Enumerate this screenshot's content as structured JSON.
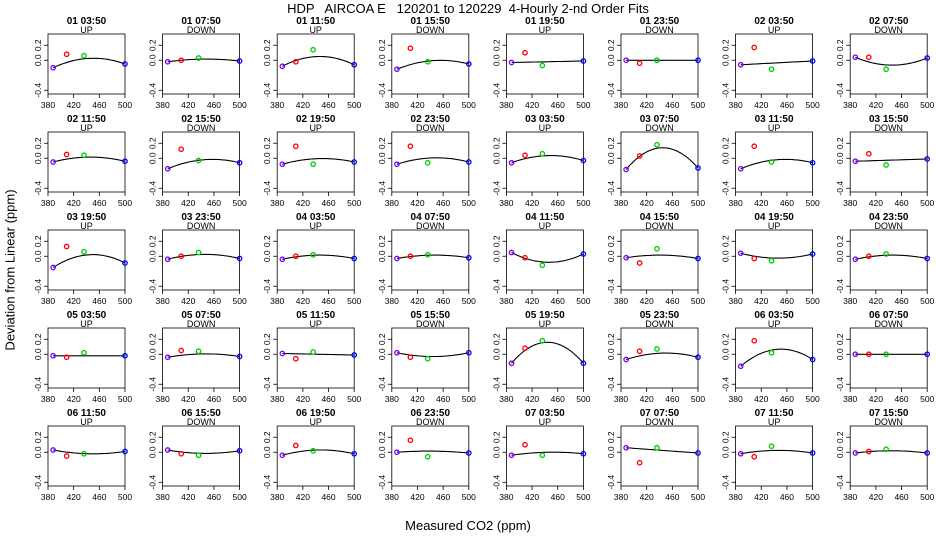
{
  "title": "HDP   AIRCOA E   120201 to 120229  4-Hourly 2-nd Order Fits",
  "xlabel": "Measured CO2 (ppm)",
  "ylabel": "Deviation from Linear (ppm)",
  "chart_data": {
    "type": "scatter",
    "xlim": [
      380,
      500
    ],
    "ylim": [
      -0.45,
      0.35
    ],
    "xticks": [
      "380",
      "420",
      "460",
      "500"
    ],
    "yticks": [
      "-0.4",
      "0.0",
      "0.2"
    ],
    "std_x": [
      388,
      409,
      436,
      500
    ],
    "std_colors": [
      "#8000ff",
      "#ff0000",
      "#00cc00",
      "#0000ff"
    ],
    "line_color": "#000000",
    "panels": [
      {
        "title": "01 03:50",
        "dir": "UP",
        "y": [
          -0.1,
          0.08,
          0.06,
          -0.05
        ],
        "c": -0.1
      },
      {
        "title": "01 07:50",
        "dir": "DOWN",
        "y": [
          -0.02,
          0.0,
          0.03,
          -0.01
        ],
        "c": -0.03
      },
      {
        "title": "01 11:50",
        "dir": "UP",
        "y": [
          -0.08,
          -0.02,
          0.14,
          -0.06
        ],
        "c": -0.12
      },
      {
        "title": "01 15:50",
        "dir": "DOWN",
        "y": [
          -0.12,
          0.16,
          -0.02,
          -0.05
        ],
        "c": -0.08
      },
      {
        "title": "01 19:50",
        "dir": "UP",
        "y": [
          -0.03,
          0.1,
          -0.07,
          -0.01
        ],
        "c": 0.0
      },
      {
        "title": "01 23:50",
        "dir": "DOWN",
        "y": [
          0.0,
          -0.04,
          0.0,
          0.0
        ],
        "c": 0.0
      },
      {
        "title": "02 03:50",
        "dir": "UP",
        "y": [
          -0.06,
          0.17,
          -0.12,
          -0.01
        ],
        "c": 0.0
      },
      {
        "title": "02 07:50",
        "dir": "DOWN",
        "y": [
          0.04,
          0.04,
          -0.12,
          0.03
        ],
        "c": 0.1
      },
      {
        "title": "02 11:50",
        "dir": "UP",
        "y": [
          -0.05,
          0.05,
          0.04,
          -0.04
        ],
        "c": -0.06
      },
      {
        "title": "02 15:50",
        "dir": "DOWN",
        "y": [
          -0.14,
          0.12,
          -0.03,
          -0.06
        ],
        "c": -0.08
      },
      {
        "title": "02 19:50",
        "dir": "UP",
        "y": [
          -0.08,
          0.16,
          -0.08,
          -0.05
        ],
        "c": -0.06
      },
      {
        "title": "02 23:50",
        "dir": "DOWN",
        "y": [
          -0.08,
          0.16,
          -0.06,
          -0.05
        ],
        "c": -0.07
      },
      {
        "title": "03 03:50",
        "dir": "UP",
        "y": [
          -0.06,
          0.04,
          0.06,
          -0.03
        ],
        "c": -0.08
      },
      {
        "title": "03 07:50",
        "dir": "DOWN",
        "y": [
          -0.15,
          0.03,
          0.18,
          -0.13
        ],
        "c": -0.28
      },
      {
        "title": "03 11:50",
        "dir": "UP",
        "y": [
          -0.14,
          0.16,
          -0.05,
          -0.06
        ],
        "c": -0.08
      },
      {
        "title": "03 15:50",
        "dir": "DOWN",
        "y": [
          -0.04,
          0.06,
          -0.09,
          -0.01
        ],
        "c": 0.0
      },
      {
        "title": "03 19:50",
        "dir": "UP",
        "y": [
          -0.15,
          0.13,
          0.06,
          -0.09
        ],
        "c": -0.14
      },
      {
        "title": "03 23:50",
        "dir": "DOWN",
        "y": [
          -0.04,
          0.0,
          0.05,
          -0.03
        ],
        "c": -0.06
      },
      {
        "title": "04 03:50",
        "dir": "UP",
        "y": [
          -0.04,
          0.0,
          0.02,
          -0.03
        ],
        "c": -0.05
      },
      {
        "title": "04 07:50",
        "dir": "DOWN",
        "y": [
          -0.03,
          0.0,
          0.02,
          -0.02
        ],
        "c": -0.04
      },
      {
        "title": "04 11:50",
        "dir": "UP",
        "y": [
          0.05,
          -0.02,
          -0.12,
          0.03
        ],
        "c": 0.12
      },
      {
        "title": "04 15:50",
        "dir": "DOWN",
        "y": [
          -0.02,
          -0.09,
          0.1,
          -0.03
        ],
        "c": -0.04
      },
      {
        "title": "04 19:50",
        "dir": "UP",
        "y": [
          0.04,
          -0.03,
          -0.06,
          0.03
        ],
        "c": 0.06
      },
      {
        "title": "04 23:50",
        "dir": "DOWN",
        "y": [
          -0.04,
          0.0,
          0.03,
          -0.03
        ],
        "c": -0.05
      },
      {
        "title": "05 03:50",
        "dir": "UP",
        "y": [
          -0.02,
          -0.04,
          0.02,
          -0.02
        ],
        "c": 0.0
      },
      {
        "title": "05 07:50",
        "dir": "DOWN",
        "y": [
          -0.04,
          0.05,
          0.04,
          -0.03
        ],
        "c": -0.04
      },
      {
        "title": "05 11:50",
        "dir": "UP",
        "y": [
          0.01,
          -0.06,
          0.03,
          -0.01
        ],
        "c": 0.0
      },
      {
        "title": "05 15:50",
        "dir": "DOWN",
        "y": [
          0.02,
          -0.04,
          -0.06,
          0.02
        ],
        "c": 0.05
      },
      {
        "title": "05 19:50",
        "dir": "UP",
        "y": [
          -0.12,
          0.08,
          0.18,
          -0.12
        ],
        "c": -0.28
      },
      {
        "title": "05 23:50",
        "dir": "DOWN",
        "y": [
          -0.07,
          0.04,
          0.07,
          -0.04
        ],
        "c": -0.07
      },
      {
        "title": "06 03:50",
        "dir": "UP",
        "y": [
          -0.16,
          0.18,
          0.02,
          -0.07
        ],
        "c": -0.18
      },
      {
        "title": "06 07:50",
        "dir": "DOWN",
        "y": [
          0.0,
          0.0,
          0.0,
          0.0
        ],
        "c": 0.0
      },
      {
        "title": "06 11:50",
        "dir": "UP",
        "y": [
          0.03,
          -0.05,
          -0.02,
          0.01
        ],
        "c": 0.04
      },
      {
        "title": "06 15:50",
        "dir": "DOWN",
        "y": [
          0.03,
          -0.02,
          -0.04,
          0.02
        ],
        "c": 0.04
      },
      {
        "title": "06 19:50",
        "dir": "UP",
        "y": [
          -0.04,
          0.09,
          0.02,
          -0.02
        ],
        "c": -0.06
      },
      {
        "title": "06 23:50",
        "dir": "DOWN",
        "y": [
          0.0,
          0.16,
          -0.06,
          -0.01
        ],
        "c": -0.02
      },
      {
        "title": "07 03:50",
        "dir": "UP",
        "y": [
          -0.04,
          0.1,
          -0.04,
          -0.02
        ],
        "c": -0.03
      },
      {
        "title": "07 07:50",
        "dir": "DOWN",
        "y": [
          0.06,
          -0.14,
          0.06,
          -0.01
        ],
        "c": 0.0
      },
      {
        "title": "07 11:50",
        "dir": "UP",
        "y": [
          -0.02,
          -0.06,
          0.08,
          -0.01
        ],
        "c": -0.04
      },
      {
        "title": "07 15:50",
        "dir": "DOWN",
        "y": [
          -0.01,
          0.01,
          0.04,
          -0.01
        ],
        "c": -0.03
      }
    ]
  }
}
